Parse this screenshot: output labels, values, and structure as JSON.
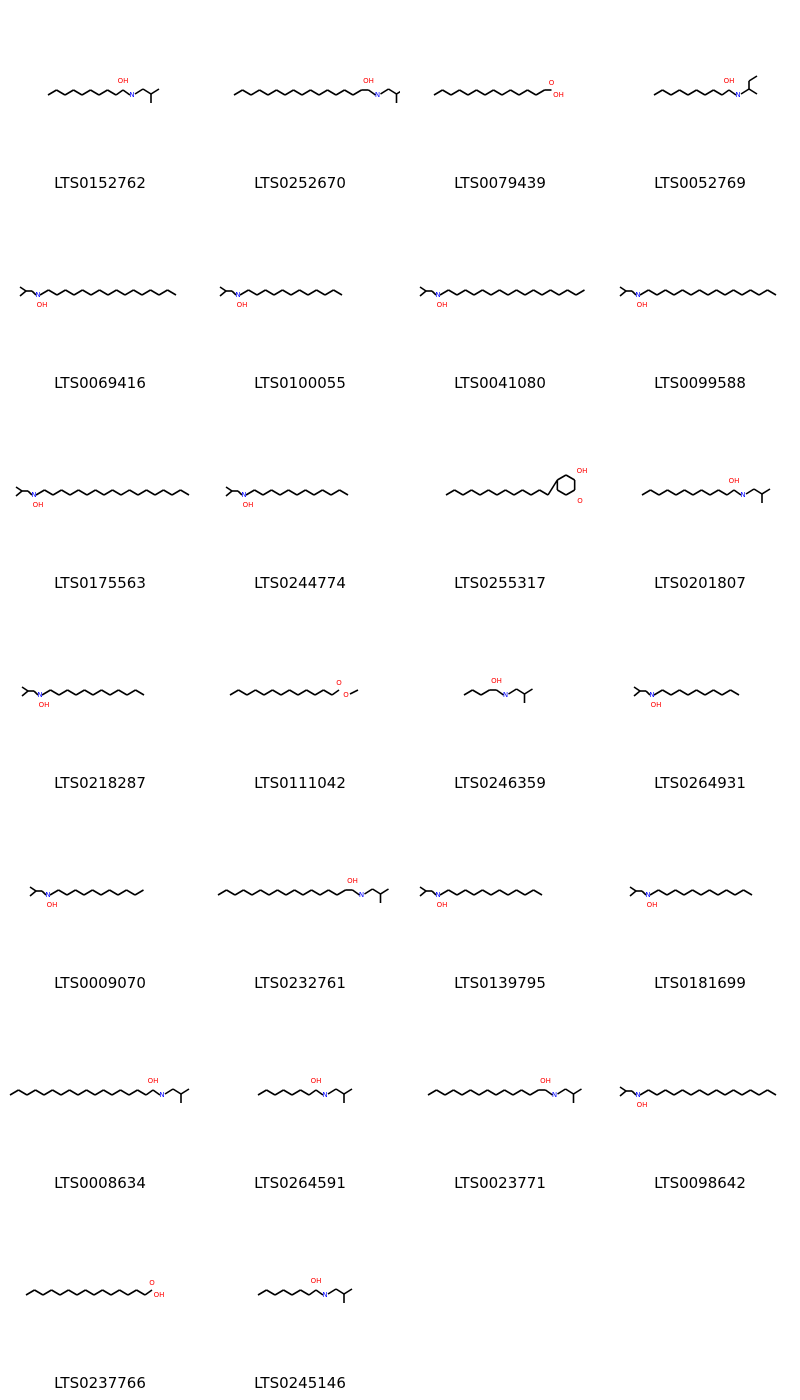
{
  "molecules": [
    {
      "id": "LTS0152762"
    },
    {
      "id": "LTS0252670"
    },
    {
      "id": "LTS0079439"
    },
    {
      "id": "LTS0052769"
    },
    {
      "id": "LTS0069416"
    },
    {
      "id": "LTS0100055"
    },
    {
      "id": "LTS0041080"
    },
    {
      "id": "LTS0099588"
    },
    {
      "id": "LTS0175563"
    },
    {
      "id": "LTS0244774"
    },
    {
      "id": "LTS0255317"
    },
    {
      "id": "LTS0201807"
    },
    {
      "id": "LTS0218287"
    },
    {
      "id": "LTS0111042"
    },
    {
      "id": "LTS0246359"
    },
    {
      "id": "LTS0264931"
    },
    {
      "id": "LTS0009070"
    },
    {
      "id": "LTS0232761"
    },
    {
      "id": "LTS0139795"
    },
    {
      "id": "LTS0181699"
    },
    {
      "id": "LTS0008634"
    },
    {
      "id": "LTS0264591"
    },
    {
      "id": "LTS0023771"
    },
    {
      "id": "LTS0098642"
    },
    {
      "id": "LTS0237766"
    },
    {
      "id": "LTS0245146"
    }
  ],
  "atom_labels": {
    "hydroxyl": "OH",
    "nitrogen": "N",
    "oxygen": "O"
  },
  "colors": {
    "bond": "#000000",
    "oxygen": "#ff0000",
    "nitrogen": "#0000ff"
  }
}
